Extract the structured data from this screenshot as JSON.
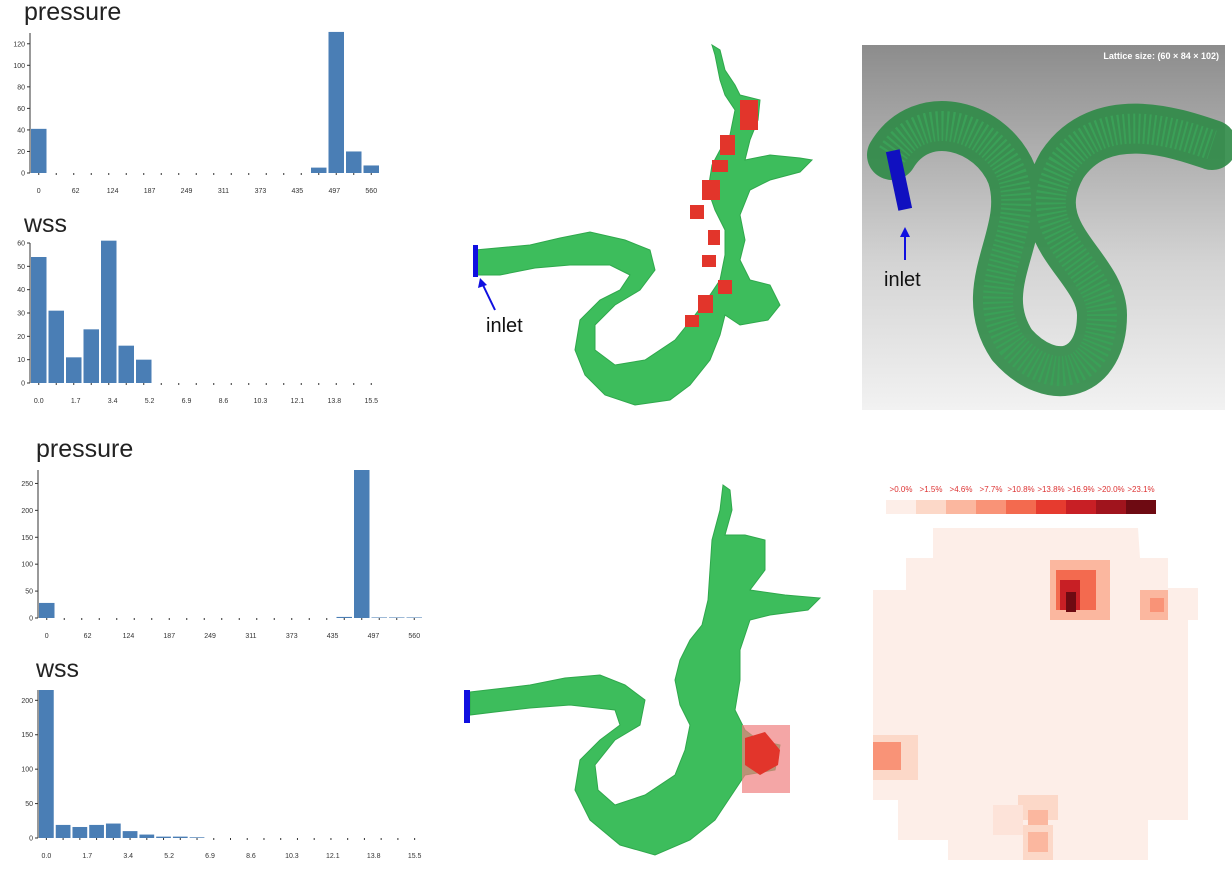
{
  "colors": {
    "bar": "#4a7eb5",
    "vessel": "#3dbd5c",
    "highlight": "#e2352b",
    "inlet": "#1010e0"
  },
  "annotations": {
    "inlet_label": "inlet",
    "lattice_label": "Lattice size: (60 × 84 × 102)"
  },
  "heatmap_legend": {
    "labels": [
      ">0.0%",
      ">1.5%",
      ">4.6%",
      ">7.7%",
      ">10.8%",
      ">13.8%",
      ">16.9%",
      ">20.0%",
      ">23.1%"
    ],
    "colors": [
      "#fdeee8",
      "#fcd8c8",
      "#fbb79f",
      "#f99377",
      "#f36a4f",
      "#e63b2f",
      "#c81f25",
      "#a0141d",
      "#6e0a12"
    ]
  },
  "chart_data": [
    {
      "type": "bar",
      "title": "pressure",
      "tick_labels": [
        "0",
        "62",
        "124",
        "187",
        "249",
        "311",
        "373",
        "435",
        "497",
        "560"
      ],
      "ylim": [
        0,
        130
      ],
      "yticks": [
        0,
        20,
        40,
        60,
        80,
        100,
        120
      ],
      "values": [
        41,
        0,
        0,
        0,
        0,
        0,
        0,
        0,
        0,
        0,
        0,
        0,
        0,
        0,
        0,
        0,
        0,
        0,
        0,
        0,
        0,
        0,
        0,
        0,
        0,
        0,
        0,
        0,
        0,
        0,
        0,
        0,
        0,
        0,
        0,
        0,
        0,
        0,
        0,
        0,
        0,
        0,
        0,
        0,
        0,
        0,
        0,
        0,
        0,
        0,
        0,
        0,
        0,
        0,
        0,
        0,
        0,
        0,
        0,
        0,
        0,
        0,
        0,
        0,
        0,
        0,
        0,
        0,
        0,
        0,
        0,
        0,
        0,
        0,
        0,
        0,
        0,
        0,
        0,
        0,
        0,
        0,
        0,
        0,
        0,
        0,
        0,
        0,
        0,
        0,
        0,
        0,
        0,
        0,
        0,
        0,
        0,
        0,
        0,
        0,
        0,
        0,
        0,
        0,
        0,
        0,
        0,
        0,
        0,
        0,
        0,
        0,
        0,
        0,
        0,
        0,
        0,
        0,
        0,
        0,
        0,
        0,
        0,
        0,
        0,
        0,
        0,
        0,
        0,
        0
      ]
    },
    {
      "type": "bar",
      "title": "wss",
      "tick_labels": [
        "0.0",
        "1.7",
        "3.4",
        "5.2",
        "6.9",
        "8.6",
        "10.3",
        "12.1",
        "13.8",
        "15.5"
      ],
      "ylim": [
        0,
        60
      ],
      "yticks": [
        0,
        10,
        20,
        30,
        40,
        50,
        60
      ],
      "values": [
        54,
        31,
        11,
        23,
        61,
        16,
        10,
        0,
        0,
        0,
        0,
        0,
        0,
        0,
        0,
        0,
        0,
        0,
        0
      ]
    },
    {
      "type": "bar",
      "title": "pressure",
      "tick_labels": [
        "0",
        "62",
        "124",
        "187",
        "249",
        "311",
        "373",
        "435",
        "497",
        "560"
      ],
      "ylim": [
        0,
        275
      ],
      "yticks": [
        0,
        50,
        100,
        150,
        200,
        250
      ],
      "values": [
        28,
        0,
        0,
        0,
        0,
        0,
        0,
        0,
        0,
        0,
        0,
        0,
        0,
        0,
        0,
        0,
        0,
        0,
        0,
        0,
        0,
        0,
        0,
        2,
        275,
        1,
        1
      ]
    },
    {
      "type": "bar",
      "title": "wss",
      "tick_labels": [
        "0.0",
        "1.7",
        "3.4",
        "5.2",
        "6.9",
        "8.6",
        "10.3",
        "12.1",
        "13.8",
        "15.5"
      ],
      "ylim": [
        0,
        215
      ],
      "yticks": [
        0,
        50,
        100,
        150,
        200
      ],
      "values": [
        215,
        19,
        16,
        19,
        21,
        10,
        5,
        2,
        1,
        1,
        0,
        0,
        0,
        0,
        0,
        0,
        0,
        0
      ]
    }
  ]
}
